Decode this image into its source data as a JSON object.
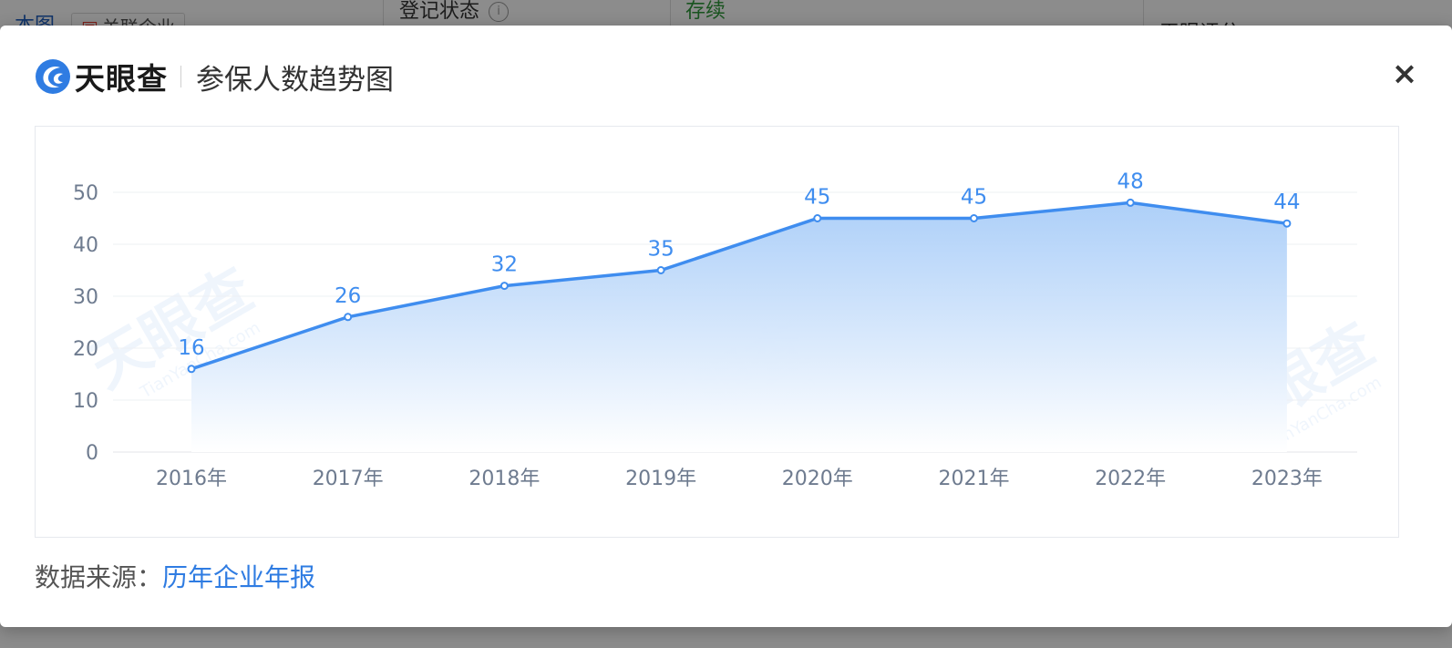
{
  "background": {
    "left_link": "本图",
    "tag_label": "关联企业",
    "status_label": "登记状态",
    "status_value": "存续",
    "right_label": "天眼评分"
  },
  "modal": {
    "logo_text": "天眼查",
    "title": "参保人数趋势图",
    "close_label": "×",
    "source_label": "数据来源：",
    "source_link": "历年企业年报",
    "watermark_text": "天眼查",
    "watermark_sub": "TianYanCha.com"
  },
  "colors": {
    "line": "#3f8def",
    "area_top": "#a9cdf8",
    "area_bottom": "#ffffff",
    "axis_text": "#6e7b8f",
    "grid": "#eef0f3"
  },
  "chart_data": {
    "type": "area",
    "categories": [
      "2016年",
      "2017年",
      "2018年",
      "2019年",
      "2020年",
      "2021年",
      "2022年",
      "2023年"
    ],
    "values": [
      16,
      26,
      32,
      35,
      45,
      45,
      48,
      44
    ],
    "y_ticks": [
      0,
      10,
      20,
      30,
      40,
      50
    ],
    "ylim": [
      0,
      50
    ],
    "grid": true,
    "data_labels": true,
    "title": "参保人数趋势图"
  }
}
